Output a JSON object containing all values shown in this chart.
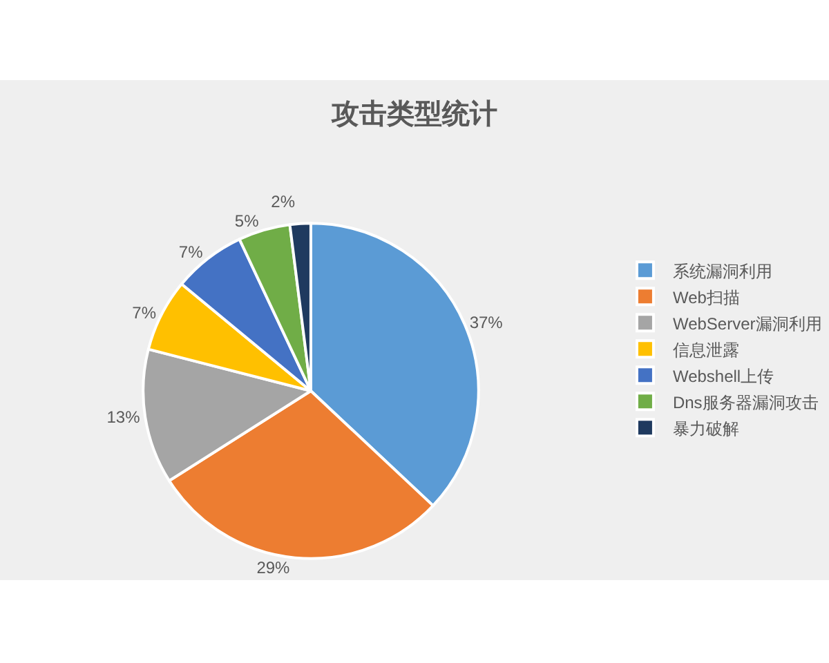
{
  "chart_data": {
    "type": "pie",
    "title": "攻击类型统计",
    "categories": [
      "系统漏洞利用",
      "Web扫描",
      "WebServer漏洞利用",
      "信息泄露",
      "Webshell上传",
      "Dns服务器漏洞攻击",
      "暴力破解"
    ],
    "values": [
      37,
      29,
      13,
      7,
      7,
      5,
      2
    ],
    "value_labels": [
      "37%",
      "29%",
      "13%",
      "7%",
      "7%",
      "5%",
      "2%"
    ],
    "colors": [
      "#5b9bd5",
      "#ed7d31",
      "#a5a5a5",
      "#ffc000",
      "#4472c4",
      "#70ad47",
      "#1f3a5f"
    ],
    "legend": "right"
  }
}
